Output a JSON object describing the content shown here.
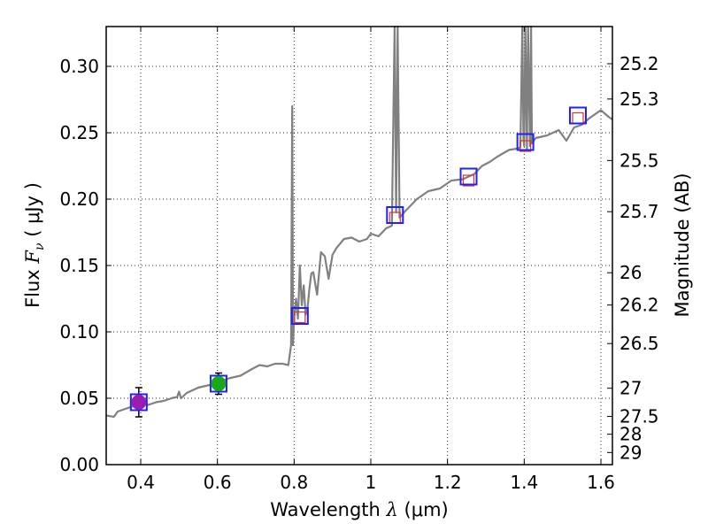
{
  "chart_data": {
    "type": "line",
    "xlabel": "Wavelength",
    "xlabel_symbol": "λ",
    "xlabel_unit": "(μm)",
    "ylabel": "Flux",
    "ylabel_symbol": "F",
    "ylabel_subscript": "ν",
    "ylabel_unit": "( μJy )",
    "y2label": "Magnitude (AB)",
    "xlim": [
      0.31,
      1.63
    ],
    "ylim": [
      0.0,
      0.33
    ],
    "grid": true,
    "x_ticks": [
      0.4,
      0.6,
      0.8,
      1.0,
      1.2,
      1.4,
      1.6
    ],
    "x_tick_labels": [
      "0.4",
      "0.6",
      "0.8",
      "1",
      "1.2",
      "1.4",
      "1.6"
    ],
    "y_ticks": [
      0.0,
      0.05,
      0.1,
      0.15,
      0.2,
      0.25,
      0.3
    ],
    "y_tick_labels": [
      "0.00",
      "0.05",
      "0.10",
      "0.15",
      "0.20",
      "0.25",
      "0.30"
    ],
    "y2_ticks": [
      25.2,
      25.3,
      25.5,
      25.7,
      26,
      26.2,
      26.5,
      27,
      27.5,
      28,
      29
    ],
    "y2_tick_labels": [
      "25.2",
      "25.3",
      "25.5",
      "25.7",
      "26",
      "26.2",
      "26.5",
      "27",
      "27.5",
      "28",
      "29"
    ],
    "series": [
      {
        "name": "model-spectrum",
        "color": "#808080",
        "x": [
          0.31,
          0.33,
          0.34,
          0.36,
          0.38,
          0.4,
          0.42,
          0.44,
          0.46,
          0.48,
          0.495,
          0.5,
          0.505,
          0.52,
          0.55,
          0.58,
          0.6,
          0.63,
          0.66,
          0.69,
          0.71,
          0.73,
          0.75,
          0.77,
          0.785,
          0.792,
          0.795,
          0.797,
          0.8,
          0.805,
          0.81,
          0.815,
          0.82,
          0.825,
          0.83,
          0.835,
          0.84,
          0.845,
          0.85,
          0.86,
          0.87,
          0.88,
          0.89,
          0.9,
          0.91,
          0.93,
          0.95,
          0.97,
          0.99,
          1.0,
          1.02,
          1.04,
          1.055,
          1.062,
          1.066,
          1.07,
          1.075,
          1.09,
          1.12,
          1.15,
          1.18,
          1.21,
          1.24,
          1.27,
          1.29,
          1.31,
          1.33,
          1.36,
          1.38,
          1.39,
          1.395,
          1.398,
          1.4,
          1.403,
          1.407,
          1.41,
          1.415,
          1.418,
          1.42,
          1.43,
          1.46,
          1.49,
          1.51,
          1.53,
          1.55,
          1.57,
          1.6,
          1.62,
          1.63
        ],
        "y": [
          0.037,
          0.036,
          0.04,
          0.042,
          0.044,
          0.046,
          0.045,
          0.047,
          0.048,
          0.05,
          0.051,
          0.055,
          0.05,
          0.054,
          0.058,
          0.06,
          0.062,
          0.065,
          0.067,
          0.072,
          0.075,
          0.074,
          0.076,
          0.076,
          0.075,
          0.09,
          0.27,
          0.09,
          0.11,
          0.125,
          0.11,
          0.15,
          0.12,
          0.135,
          0.113,
          0.118,
          0.133,
          0.144,
          0.145,
          0.128,
          0.16,
          0.157,
          0.14,
          0.158,
          0.163,
          0.17,
          0.171,
          0.168,
          0.17,
          0.174,
          0.172,
          0.178,
          0.18,
          0.33,
          0.19,
          0.33,
          0.186,
          0.191,
          0.2,
          0.206,
          0.208,
          0.214,
          0.215,
          0.219,
          0.225,
          0.228,
          0.232,
          0.237,
          0.238,
          0.239,
          0.33,
          0.245,
          0.24,
          0.33,
          0.238,
          0.33,
          0.24,
          0.33,
          0.242,
          0.246,
          0.248,
          0.252,
          0.244,
          0.254,
          0.256,
          0.261,
          0.267,
          0.262,
          0.26
        ]
      }
    ],
    "filter_points": [
      {
        "name": "filter-violet",
        "x": 0.395,
        "y": 0.047,
        "yerr": 0.011,
        "marker": "circle",
        "fill": "#9b1db0",
        "edge": "#2020ff"
      },
      {
        "name": "filter-green",
        "x": 0.603,
        "y": 0.061,
        "yerr": 0.008,
        "marker": "circle",
        "fill": "#18a818",
        "edge": "#2020ff"
      },
      {
        "name": "filter-810",
        "x": 0.815,
        "y": 0.112,
        "yerr": 0.0,
        "marker": "square",
        "fill": "none",
        "edge": "#2020ff"
      },
      {
        "name": "filter-1060",
        "x": 1.063,
        "y": 0.188,
        "yerr": 0.0,
        "marker": "square",
        "fill": "none",
        "edge": "#2020ff"
      },
      {
        "name": "filter-1250",
        "x": 1.255,
        "y": 0.217,
        "yerr": 0.0,
        "marker": "square",
        "fill": "none",
        "edge": "#2020ff"
      },
      {
        "name": "filter-1400",
        "x": 1.403,
        "y": 0.243,
        "yerr": 0.0,
        "marker": "square",
        "fill": "none",
        "edge": "#2020ff"
      },
      {
        "name": "filter-1540",
        "x": 1.54,
        "y": 0.263,
        "yerr": 0.0,
        "marker": "square",
        "fill": "none",
        "edge": "#2020ff"
      }
    ],
    "model_points": [
      {
        "x": 0.815,
        "y": 0.111
      },
      {
        "x": 1.063,
        "y": 0.186
      },
      {
        "x": 1.255,
        "y": 0.214
      },
      {
        "x": 1.403,
        "y": 0.24
      },
      {
        "x": 1.54,
        "y": 0.261
      }
    ],
    "model_point_color": "#e03030"
  }
}
